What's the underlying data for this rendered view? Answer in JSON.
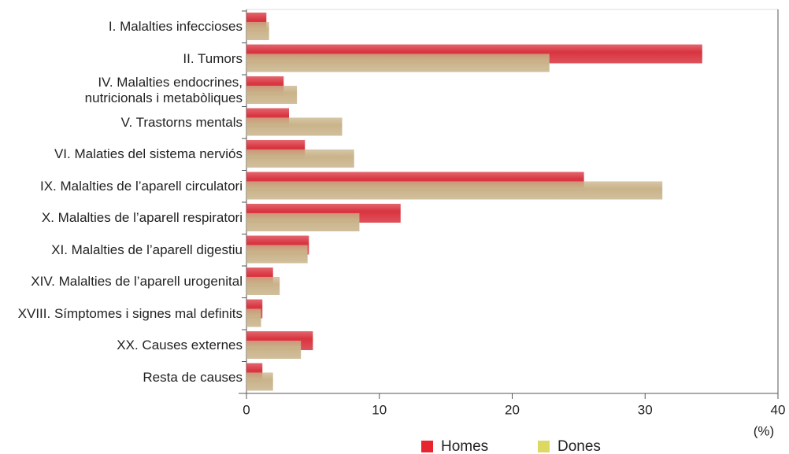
{
  "chart_data": {
    "type": "hbar",
    "categories": [
      "I. Malalties infeccioses",
      "II. Tumors",
      "IV. Malalties endocrines,\nnutricionals i metabòliques",
      "V. Trastorns mentals",
      "VI. Malaties del sistema nerviós",
      "IX. Malalties de l’aparell circulatori",
      "X. Malalties de l’aparell respiratori",
      "XI. Malalties de l’aparell digestiu",
      "XIV. Malalties de l’aparell urogenital",
      "XVIII. Símptomes i signes mal definits",
      "XX. Causes externes",
      "Resta de causes"
    ],
    "series": [
      {
        "name": "Homes",
        "color": "#d9343f",
        "swatch": "#e8242e",
        "values": [
          1.5,
          34.3,
          2.8,
          3.2,
          4.4,
          25.4,
          11.6,
          4.7,
          2.0,
          1.2,
          5.0,
          1.2
        ]
      },
      {
        "name": "Dones",
        "color": "#c9b38a",
        "swatch": "#dcd862",
        "values": [
          1.7,
          22.8,
          3.8,
          7.2,
          8.1,
          31.3,
          8.5,
          4.6,
          2.5,
          1.1,
          4.1,
          2.0
        ]
      }
    ],
    "xlim": [
      0,
      40
    ],
    "xticks": [
      0,
      10,
      20,
      30,
      40
    ],
    "xlabel": "(%)"
  }
}
